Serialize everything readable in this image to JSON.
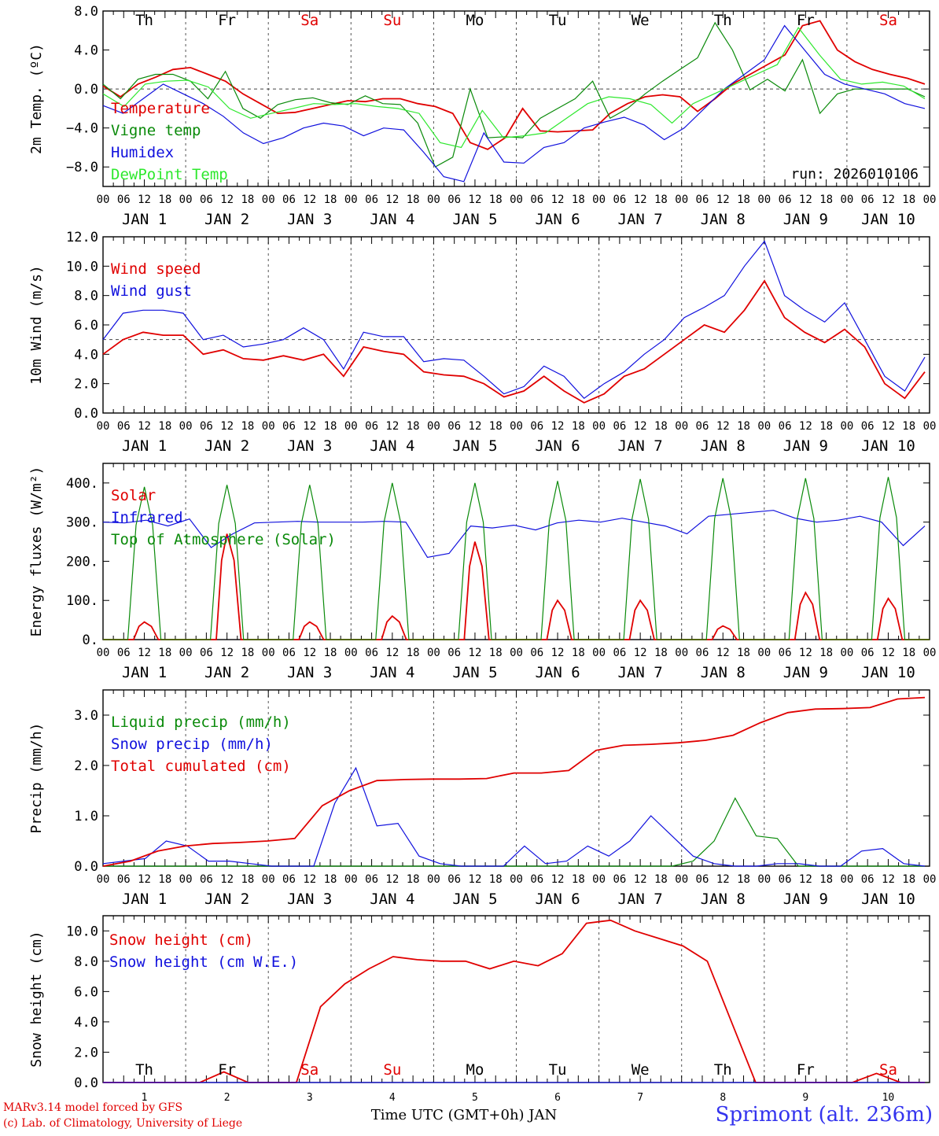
{
  "days": {
    "names": [
      "Th",
      "Fr",
      "Sa",
      "Su",
      "Mo",
      "Tu",
      "We",
      "Th",
      "Fr",
      "Sa"
    ],
    "weekend_flags": [
      false,
      false,
      true,
      true,
      false,
      false,
      false,
      false,
      false,
      true
    ],
    "dates": [
      "JAN  1",
      "JAN  2",
      "JAN  3",
      "JAN  4",
      "JAN  5",
      "JAN  6",
      "JAN  7",
      "JAN  8",
      "JAN  9",
      "JAN 10"
    ],
    "numbers": [
      "1",
      "2",
      "3",
      "4",
      "5",
      "6",
      "7",
      "8",
      "9",
      "10"
    ],
    "hour_ticks": [
      "00",
      "06",
      "12",
      "18"
    ],
    "final_tick": "00"
  },
  "colors": {
    "red": "#e00000",
    "green": "#0a8a0a",
    "blue": "#1010dd",
    "lightgreen": "#2ee82e",
    "weekend": "#e00000",
    "axis": "#000000"
  },
  "footer": {
    "model_line": "MARv3.14 model forced by GFS",
    "credit_line": "(c) Lab. of Climatology, University of Liege",
    "time_axis_label": "Time UTC (GMT+0h) JAN",
    "site_label": "Sprimont (alt. 236m)"
  },
  "chart_data": [
    {
      "type": "line",
      "id": "temperature",
      "ylabel": "2m Temp. (ºC)",
      "ylim": [
        -10,
        8
      ],
      "yticks": [
        8,
        4,
        0,
        -4,
        -8
      ],
      "ytick_labels": [
        "8.0",
        "4.0",
        "0.0",
        "−4.0",
        "−8.0"
      ],
      "reference_line": 0,
      "annotation": "run: 2026010106",
      "series": [
        {
          "name": "Temperature",
          "color": "red",
          "values": [
            0.3,
            -0.8,
            0.5,
            1.2,
            2.0,
            2.2,
            1.5,
            0.8,
            -0.5,
            -1.5,
            -2.5,
            -2.4,
            -2.0,
            -1.6,
            -1.2,
            -1.3,
            -1.0,
            -1.0,
            -1.5,
            -1.8,
            -2.5,
            -5.5,
            -6.2,
            -5.0,
            -2.0,
            -4.3,
            -4.4,
            -4.3,
            -4.2,
            -2.5,
            -1.5,
            -0.8,
            -0.6,
            -0.8,
            -2.3,
            -1.0,
            0.5,
            1.5,
            2.5,
            3.5,
            6.5,
            7.0,
            4.0,
            2.8,
            2.0,
            1.5,
            1.1,
            0.5
          ]
        },
        {
          "name": "Vigne temp",
          "color": "green",
          "values": [
            0.5,
            -1.0,
            1.0,
            1.5,
            1.5,
            0.8,
            -1.0,
            1.8,
            -2.0,
            -3.0,
            -1.6,
            -1.1,
            -0.9,
            -1.4,
            -1.6,
            -0.7,
            -1.5,
            -1.6,
            -3.5,
            -8.0,
            -7.0,
            0.0,
            -5.0,
            -4.9,
            -5.0,
            -3.0,
            -2.0,
            -1.0,
            0.8,
            -3.0,
            -2.0,
            -0.5,
            0.8,
            2.0,
            3.2,
            6.8,
            4.0,
            -0.1,
            1.0,
            -0.2,
            3.0,
            -2.5,
            -0.5,
            0.0,
            0.0,
            0.0,
            0.0,
            -0.8
          ]
        },
        {
          "name": "Humidex",
          "color": "blue",
          "values": [
            -1.7,
            -2.5,
            -1.0,
            0.5,
            -0.5,
            -1.5,
            -2.8,
            -4.5,
            -5.6,
            -5.0,
            -4.0,
            -3.5,
            -3.8,
            -4.8,
            -4.0,
            -4.2,
            -6.5,
            -9.0,
            -9.5,
            -4.5,
            -7.5,
            -7.6,
            -6.0,
            -5.5,
            -4.0,
            -3.4,
            -2.9,
            -3.7,
            -5.2,
            -4.0,
            -2.0,
            0.0,
            1.5,
            3.0,
            6.5,
            4.0,
            1.5,
            0.5,
            0.0,
            -0.5,
            -1.5,
            -2.0
          ]
        },
        {
          "name": "DewPoint Temp",
          "color": "lightgreen",
          "values": [
            -0.5,
            -1.8,
            0.5,
            0.8,
            0.9,
            0.2,
            -2.0,
            -3.0,
            -2.5,
            -2.0,
            -1.5,
            -1.6,
            -1.5,
            -1.8,
            -2.0,
            -2.5,
            -5.5,
            -6.0,
            -2.2,
            -5.0,
            -4.8,
            -4.5,
            -3.0,
            -1.5,
            -0.8,
            -1.0,
            -1.6,
            -3.5,
            -1.5,
            -0.5,
            0.5,
            1.5,
            2.5,
            6.3,
            3.5,
            1.0,
            0.5,
            0.7,
            0.3,
            -1.0
          ]
        }
      ]
    },
    {
      "type": "line",
      "id": "wind",
      "ylabel": "10m Wind (m/s)",
      "ylim": [
        0,
        12
      ],
      "yticks": [
        0,
        2,
        4,
        6,
        8,
        10,
        12
      ],
      "ytick_labels": [
        "0.0",
        "2.0",
        "4.0",
        "6.0",
        "8.0",
        "10.0",
        "12.0"
      ],
      "reference_line": 5,
      "series": [
        {
          "name": "Wind speed",
          "color": "red",
          "values": [
            4.0,
            5.0,
            5.5,
            5.3,
            5.3,
            4.0,
            4.3,
            3.7,
            3.6,
            3.9,
            3.6,
            4.0,
            2.5,
            4.5,
            4.2,
            4.0,
            2.8,
            2.6,
            2.5,
            2.0,
            1.1,
            1.5,
            2.5,
            1.5,
            0.7,
            1.3,
            2.5,
            3.0,
            4.0,
            5.0,
            6.0,
            5.5,
            7.0,
            9.0,
            6.5,
            5.5,
            4.8,
            5.7,
            4.5,
            2.0,
            1.0,
            2.8
          ]
        },
        {
          "name": "Wind gust",
          "color": "blue",
          "values": [
            5.0,
            6.8,
            7.0,
            7.0,
            6.8,
            5.0,
            5.3,
            4.5,
            4.7,
            5.0,
            5.8,
            5.0,
            3.0,
            5.5,
            5.2,
            5.2,
            3.5,
            3.7,
            3.6,
            2.5,
            1.3,
            1.8,
            3.2,
            2.5,
            1.0,
            2.0,
            2.8,
            4.0,
            5.0,
            6.5,
            7.2,
            8.0,
            10.0,
            11.7,
            8.0,
            7.0,
            6.2,
            7.5,
            5.0,
            2.5,
            1.5,
            3.8
          ]
        }
      ]
    },
    {
      "type": "line",
      "id": "energy",
      "ylabel": "Energy fluxes (W/m²)",
      "ylim": [
        0,
        450
      ],
      "yticks": [
        0,
        100,
        200,
        300,
        400
      ],
      "ytick_labels": [
        "0.",
        "100.",
        "200.",
        "300.",
        "400."
      ],
      "series": [
        {
          "name": "Solar",
          "color": "red",
          "peaks": [
            45,
            270,
            45,
            60,
            250,
            100,
            100,
            35,
            120,
            105
          ]
        },
        {
          "name": "Infrared",
          "color": "blue",
          "values": [
            300,
            298,
            305,
            290,
            308,
            235,
            270,
            298,
            300,
            302,
            300,
            300,
            300,
            302,
            300,
            210,
            220,
            290,
            285,
            292,
            280,
            298,
            305,
            300,
            310,
            300,
            290,
            270,
            315,
            320,
            325,
            330,
            310,
            300,
            305,
            315,
            300,
            240,
            290
          ]
        },
        {
          "name": "Top of Atmosphere (Solar)",
          "color": "green",
          "peaks": [
            390,
            395,
            395,
            400,
            400,
            405,
            410,
            412,
            412,
            415
          ]
        }
      ]
    },
    {
      "type": "line",
      "id": "precip",
      "ylabel": "Precip (mm/h)",
      "ylim": [
        0,
        3.5
      ],
      "yticks": [
        0,
        1,
        2,
        3
      ],
      "ytick_labels": [
        "0.0",
        "1.0",
        "2.0",
        "3.0"
      ],
      "series": [
        {
          "name": "Liquid precip (mm/h)",
          "color": "green",
          "values": [
            0,
            0,
            0,
            0,
            0,
            0,
            0,
            0,
            0,
            0,
            0,
            0,
            0,
            0,
            0,
            0,
            0,
            0,
            0,
            0,
            0,
            0,
            0,
            0,
            0,
            0,
            0,
            0,
            0.1,
            0.5,
            1.35,
            0.6,
            0.55,
            0.0,
            0,
            0,
            0,
            0,
            0,
            0
          ]
        },
        {
          "name": "Snow precip (mm/h)",
          "color": "blue",
          "values": [
            0.05,
            0.1,
            0.15,
            0.5,
            0.4,
            0.1,
            0.1,
            0.05,
            0,
            0,
            0,
            1.25,
            1.95,
            0.8,
            0.85,
            0.2,
            0.05,
            0,
            0,
            0,
            0.4,
            0.05,
            0.1,
            0.4,
            0.2,
            0.5,
            1.0,
            0.6,
            0.2,
            0.05,
            0,
            0,
            0.05,
            0.05,
            0,
            0,
            0.3,
            0.35,
            0.05,
            0
          ]
        },
        {
          "name": "Total cumulated (cm)",
          "color": "red",
          "values": [
            0.0,
            0.1,
            0.3,
            0.4,
            0.45,
            0.47,
            0.5,
            0.55,
            1.2,
            1.5,
            1.7,
            1.72,
            1.73,
            1.73,
            1.74,
            1.85,
            1.85,
            1.9,
            2.3,
            2.4,
            2.42,
            2.45,
            2.5,
            2.6,
            2.85,
            3.05,
            3.12,
            3.13,
            3.15,
            3.32,
            3.35
          ]
        }
      ]
    },
    {
      "type": "line",
      "id": "snow",
      "ylabel": "Snow height (cm)",
      "ylim": [
        0,
        11
      ],
      "yticks": [
        0,
        2,
        4,
        6,
        8,
        10
      ],
      "ytick_labels": [
        "0.0",
        "2.0",
        "4.0",
        "6.0",
        "8.0",
        "10.0"
      ],
      "series": [
        {
          "name": "Snow height (cm)",
          "color": "red",
          "values": [
            0,
            0,
            0,
            0,
            0,
            0.7,
            0,
            0,
            0,
            5.0,
            6.5,
            7.5,
            8.3,
            8.1,
            8.0,
            8.0,
            7.5,
            8.0,
            7.7,
            8.5,
            10.5,
            10.7,
            10.0,
            9.5,
            9.0,
            8.0,
            4.0,
            0,
            0,
            0,
            0,
            0,
            0.6,
            0,
            0
          ]
        },
        {
          "name": "Snow height (cm W.E.)",
          "color": "blue",
          "values": [
            0,
            0,
            0,
            0,
            0,
            0,
            0,
            0,
            0,
            0
          ]
        }
      ]
    }
  ]
}
